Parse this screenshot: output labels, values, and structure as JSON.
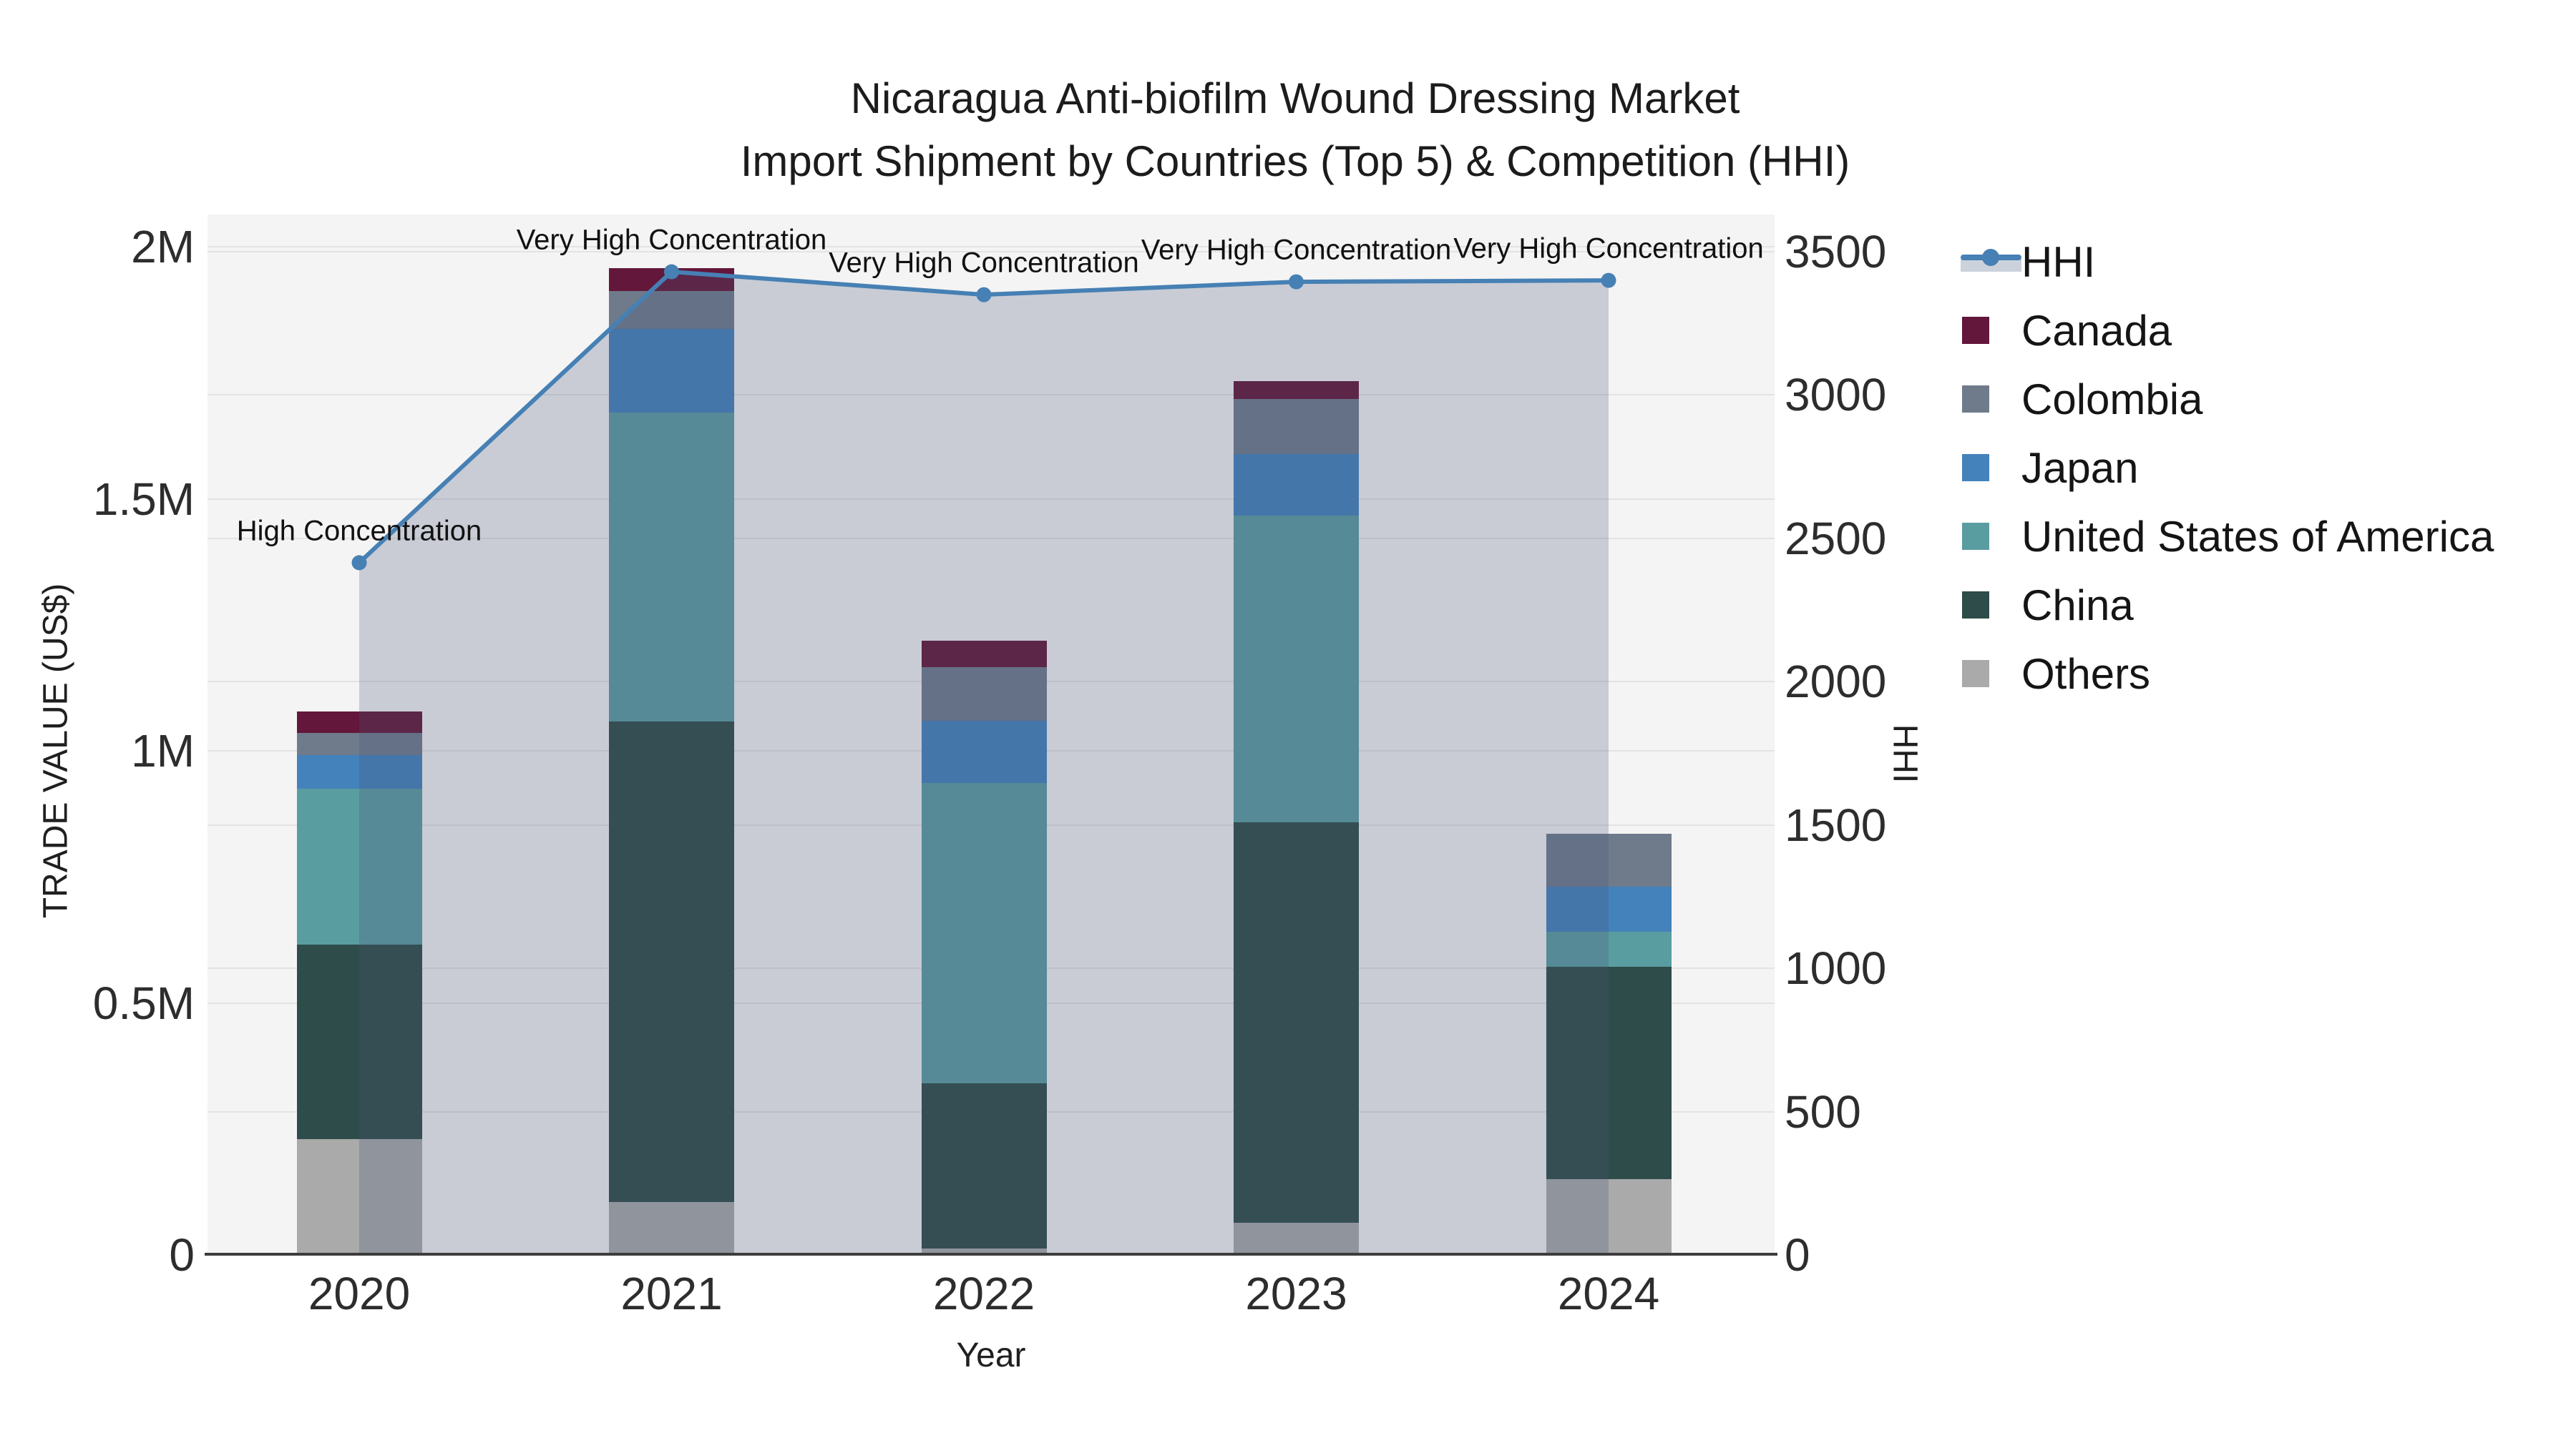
{
  "title": {
    "line1": "Nicaragua Anti-biofilm Wound Dressing Market",
    "line2": "Import Shipment by Countries (Top 5) & Competition (HHI)"
  },
  "axes": {
    "x": {
      "title": "Year",
      "ticks": [
        "2020",
        "2021",
        "2022",
        "2023",
        "2024"
      ]
    },
    "left": {
      "title": "TRADE VALUE (US$)",
      "range": [
        0,
        2000000
      ],
      "ticks": [
        {
          "label": "2M",
          "value": 2000000
        },
        {
          "label": "1.5M",
          "value": 1500000
        },
        {
          "label": "1M",
          "value": 1000000
        },
        {
          "label": "0.5M",
          "value": 500000
        },
        {
          "label": "0",
          "value": 0
        }
      ]
    },
    "right": {
      "title": "HHI",
      "range": [
        0,
        3500
      ],
      "ticks": [
        {
          "label": "3500",
          "value": 3500
        },
        {
          "label": "3000",
          "value": 3000
        },
        {
          "label": "2500",
          "value": 2500
        },
        {
          "label": "2000",
          "value": 2000
        },
        {
          "label": "1500",
          "value": 1500
        },
        {
          "label": "1000",
          "value": 1000
        },
        {
          "label": "500",
          "value": 500
        },
        {
          "label": "0",
          "value": 0
        }
      ]
    }
  },
  "legend": {
    "items": [
      {
        "label": "HHI",
        "type": "line",
        "color": "#4680b4",
        "fill": "#ccd2db"
      },
      {
        "label": "Canada",
        "type": "bar",
        "color": "#63173a"
      },
      {
        "label": "Colombia",
        "type": "bar",
        "color": "#6f7b8b"
      },
      {
        "label": "Japan",
        "type": "bar",
        "color": "#4482bb"
      },
      {
        "label": "United States of America",
        "type": "bar",
        "color": "#5a9da1"
      },
      {
        "label": "China",
        "type": "bar",
        "color": "#2e4c49"
      },
      {
        "label": "Others",
        "type": "bar",
        "color": "#a9aaa9"
      }
    ]
  },
  "chart_data": {
    "type": "bar+line",
    "title": "Nicaragua Anti-biofilm Wound Dressing Market Import Shipment by Countries (Top 5) & Competition (HHI)",
    "categories": [
      "2020",
      "2021",
      "2022",
      "2023",
      "2024"
    ],
    "bar_value_unit": "US$ trade value",
    "stack_order_bottom_to_top": [
      "Others",
      "China",
      "United States of America",
      "Japan",
      "Colombia",
      "Canada"
    ],
    "series": [
      {
        "name": "Others",
        "color": "#a9aaa9",
        "values": [
          230000,
          105000,
          13000,
          64000,
          150000
        ]
      },
      {
        "name": "China",
        "color": "#2e4c49",
        "values": [
          385000,
          953000,
          327000,
          794000,
          421000
        ]
      },
      {
        "name": "United States of America",
        "color": "#5a9da1",
        "values": [
          310000,
          613000,
          596000,
          609000,
          70000
        ]
      },
      {
        "name": "Japan",
        "color": "#4482bb",
        "values": [
          67000,
          166000,
          123000,
          122000,
          89000
        ]
      },
      {
        "name": "Colombia",
        "color": "#6f7b8b",
        "values": [
          43000,
          75000,
          107000,
          109000,
          105000
        ]
      },
      {
        "name": "Canada",
        "color": "#63173a",
        "values": [
          43000,
          45000,
          52000,
          35000,
          0
        ]
      }
    ],
    "line": {
      "name": "HHI",
      "axis": "right",
      "color": "#4680b4",
      "fill_color": "rgba(72,84,120,0.25)",
      "values": [
        2415,
        3430,
        3350,
        3395,
        3400
      ]
    },
    "annotations": [
      {
        "category": "2020",
        "text": "High Concentration"
      },
      {
        "category": "2021",
        "text": "Very High Concentration"
      },
      {
        "category": "2022",
        "text": "Very High Concentration"
      },
      {
        "category": "2023",
        "text": "Very High Concentration"
      },
      {
        "category": "2024",
        "text": "Very High Concentration"
      }
    ],
    "ylim_left": [
      0,
      2000000
    ],
    "ylim_right": [
      0,
      3500
    ],
    "grid": true,
    "legend_position": "right",
    "plot_background": "#f4f4f4"
  }
}
